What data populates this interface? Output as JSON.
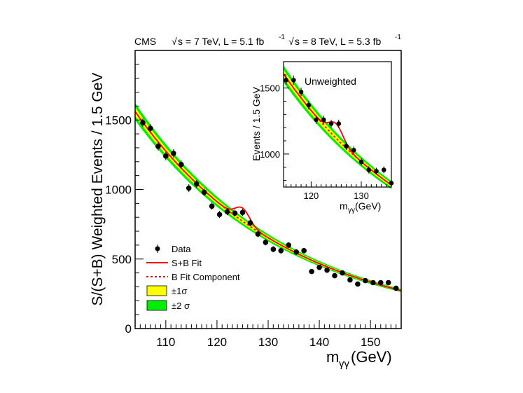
{
  "header": {
    "experiment": "CMS",
    "run1_label": "s = 7 TeV, L = 5.1 fb",
    "run1_exp": "-1",
    "run2_label": "s = 8 TeV, L = 5.3 fb",
    "run2_exp": "-1"
  },
  "colors": {
    "fit": "#ff0000",
    "band1": "#ffff00",
    "band2": "#00ee00",
    "data": "#000000"
  },
  "legend": {
    "data": "Data",
    "sb_fit": "S+B Fit",
    "b_fit": "B Fit Component",
    "one_sigma": "±1σ",
    "two_sigma": "±2 σ"
  },
  "chart_data": [
    {
      "type": "scatter",
      "title": "",
      "ylabel": "S/(S+B) Weighted Events / 1.5 GeV",
      "xlabel_main": "m",
      "xlabel_sub": "γγ",
      "xlabel_unit": " (GeV)",
      "xlim": [
        104,
        156
      ],
      "ylim": [
        0,
        2000
      ],
      "xticks": [
        110,
        120,
        130,
        140,
        150
      ],
      "yticks": [
        0,
        500,
        1000,
        1500
      ],
      "x": [
        105.5,
        107,
        108.5,
        110,
        111.5,
        113,
        114.5,
        116,
        117.5,
        119,
        120.5,
        122,
        123.5,
        125,
        126.5,
        128,
        129.5,
        131,
        132.5,
        134,
        135.5,
        137,
        138.5,
        140,
        141.5,
        143,
        144.5,
        146,
        147.5,
        149,
        150.5,
        152,
        153.5,
        155
      ],
      "y": [
        1480,
        1440,
        1310,
        1240,
        1260,
        1180,
        1010,
        1040,
        980,
        880,
        820,
        840,
        830,
        835,
        760,
        680,
        620,
        570,
        560,
        600,
        550,
        560,
        410,
        440,
        420,
        380,
        400,
        350,
        320,
        345,
        330,
        330,
        330,
        290
      ],
      "yerr": [
        30,
        30,
        30,
        30,
        30,
        30,
        28,
        28,
        27,
        26,
        26,
        25,
        25,
        25,
        24,
        23,
        22,
        22,
        21,
        21,
        21,
        20,
        18,
        18,
        18,
        17,
        17,
        16,
        16,
        16,
        15,
        15,
        15,
        14
      ],
      "bkg_fit": {
        "A": 1560,
        "k": 0.0335,
        "x0": 104
      },
      "signal": {
        "mass": 125,
        "amplitude": 95,
        "width": 1.4
      }
    },
    {
      "type": "scatter",
      "title": "Unweighted",
      "ylabel": "Events / 1.5 GeV",
      "xlabel_main": "m",
      "xlabel_sub": "γγ",
      "xlabel_unit": " (GeV)",
      "xlim": [
        114.5,
        136
      ],
      "ylim": [
        750,
        1700
      ],
      "xticks": [
        120,
        130
      ],
      "yticks": [
        1000,
        1500
      ],
      "x": [
        115,
        116.5,
        118,
        119.5,
        121,
        122.5,
        124,
        125.5,
        127,
        128.5,
        130,
        131.5,
        133,
        134.5,
        136
      ],
      "y": [
        1560,
        1560,
        1470,
        1370,
        1260,
        1260,
        1230,
        1230,
        1060,
        1030,
        940,
        880,
        870,
        880,
        780
      ],
      "yerr": [
        35,
        35,
        33,
        32,
        31,
        31,
        30,
        30,
        29,
        28,
        27,
        27,
        26,
        26,
        25
      ],
      "bkg_fit": {
        "A": 1580,
        "k": 0.0345,
        "x0": 115
      },
      "signal": {
        "mass": 125,
        "amplitude": 110,
        "width": 1.4
      }
    }
  ]
}
